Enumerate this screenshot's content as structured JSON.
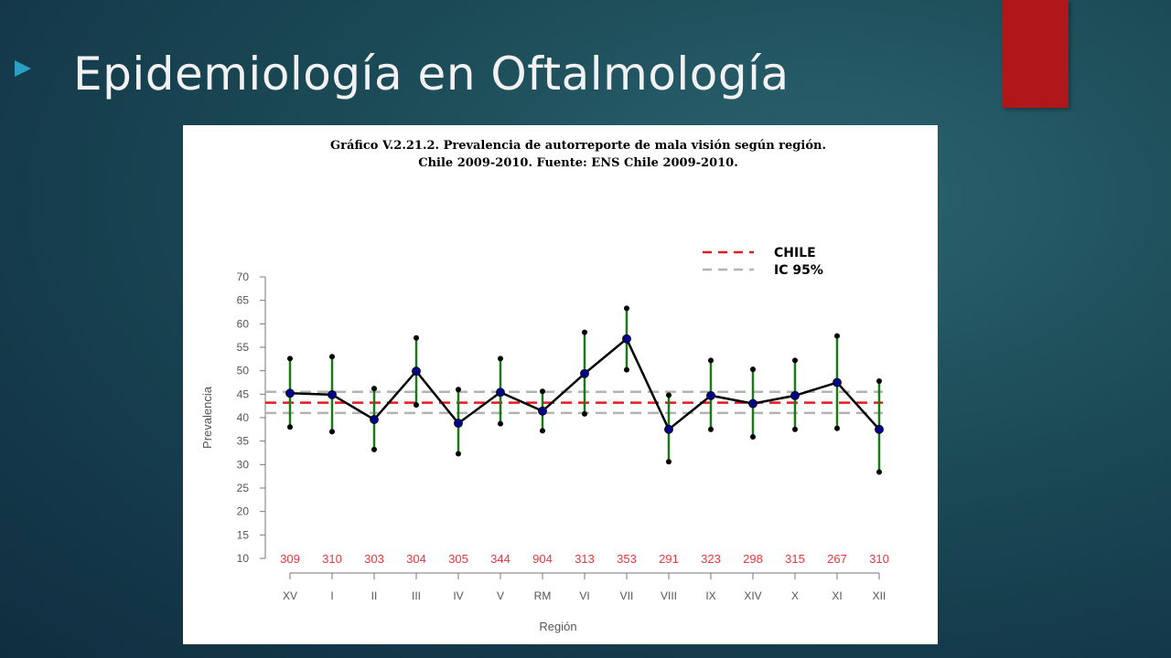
{
  "slide": {
    "title": "Epidemiología en Oftalmología"
  },
  "colors": {
    "background": "#1c4c58",
    "accent_bar": "#b0171b",
    "arrow": "#2aa1c2",
    "title_text": "#f2f2f2",
    "chile_line": "#e41a1c",
    "ci_line": "#b3b3b3",
    "ci_bars": "#1a7a1a",
    "points": "#00008b",
    "n_labels": "#e8363d"
  },
  "chart_data": {
    "type": "line",
    "title": "Gráfico V.2.21.2. Prevalencia de autorreporte de mala visión según región.",
    "subtitle": "Chile 2009-2010. Fuente: ENS Chile 2009-2010.",
    "xlabel": "Región",
    "ylabel": "Prevalencia",
    "ylim": [
      10,
      70
    ],
    "yticks": [
      10,
      15,
      20,
      25,
      30,
      35,
      40,
      45,
      50,
      55,
      60,
      65,
      70
    ],
    "categories": [
      "XV",
      "I",
      "II",
      "III",
      "IV",
      "V",
      "RM",
      "VI",
      "VII",
      "VIII",
      "IX",
      "XIV",
      "X",
      "XI",
      "XII"
    ],
    "series": [
      {
        "values": [
          45.2,
          44.9,
          39.6,
          49.9,
          38.8,
          45.4,
          41.4,
          49.4,
          56.8,
          37.5,
          44.7,
          43.0,
          44.7,
          47.5,
          37.5
        ],
        "ci_low": [
          38.0,
          37.0,
          33.2,
          42.7,
          32.3,
          38.7,
          37.2,
          40.8,
          50.2,
          30.6,
          37.5,
          35.9,
          37.5,
          37.7,
          28.4
        ],
        "ci_high": [
          52.6,
          53.0,
          46.2,
          57.0,
          46.0,
          52.6,
          45.6,
          58.2,
          63.3,
          44.8,
          52.2,
          50.3,
          52.2,
          57.4,
          47.8
        ]
      }
    ],
    "sample_sizes": [
      "309",
      "310",
      "303",
      "304",
      "305",
      "344",
      "904",
      "313",
      "353",
      "291",
      "323",
      "298",
      "315",
      "267",
      "310"
    ],
    "reference_lines": {
      "chile": 43.2,
      "ic95_low": 41.0,
      "ic95_high": 45.5
    },
    "legend": {
      "position": "top-right",
      "items": [
        {
          "label": "CHILE",
          "color": "#e41a1c",
          "style": "dashed"
        },
        {
          "label": "IC 95%",
          "color": "#b3b3b3",
          "style": "dashed"
        }
      ]
    },
    "grid": false
  }
}
